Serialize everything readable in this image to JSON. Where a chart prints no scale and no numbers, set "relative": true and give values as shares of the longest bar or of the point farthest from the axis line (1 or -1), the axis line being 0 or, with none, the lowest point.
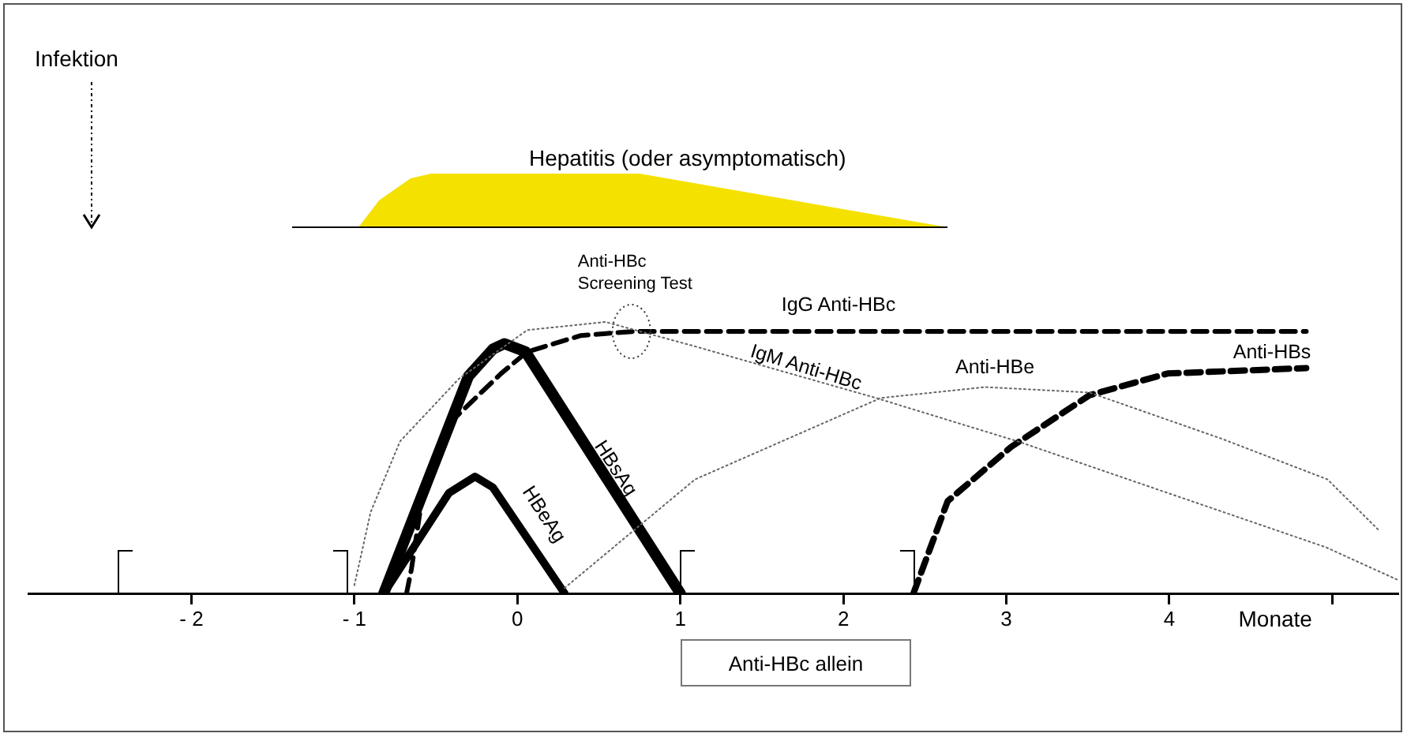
{
  "chart_data": {
    "type": "line",
    "relative": true,
    "xlim": [
      -3,
      5.4
    ],
    "xticks": [
      {
        "value": -2,
        "label": "- 2"
      },
      {
        "value": -1,
        "label": "- 1"
      },
      0,
      1,
      2,
      3,
      4,
      {
        "value": 5,
        "label": null
      }
    ],
    "xlabel": "Monate",
    "grid": false,
    "legend": false,
    "marker": "none",
    "annotations": [
      "Infektion",
      {
        "text": "Anti-HBc\nScreening Test",
        "x": 0.7,
        "y": 0.965
      },
      "Anti-HBc allein",
      "Hepatitis (oder asymptomatisch)"
    ],
    "series": [
      {
        "name": "IgM Anti-HBc",
        "color": "#666666",
        "line_style": "dotted",
        "x": [
          -1.0,
          -0.9,
          -0.72,
          -0.36,
          0.06,
          0.54,
          1.09,
          2.2,
          3.07,
          3.99,
          4.96,
          5.4
        ],
        "values": [
          0.03,
          0.3,
          0.56,
          0.79,
          0.97,
          1.0,
          0.91,
          0.72,
          0.56,
          0.37,
          0.17,
          0.05
        ]
      },
      {
        "name": "Anti-HBe",
        "color": "#666666",
        "line_style": "dotted",
        "x": [
          0.29,
          1.09,
          2.23,
          2.87,
          3.51,
          4.32,
          4.97,
          5.29
        ],
        "values": [
          0.02,
          0.42,
          0.72,
          0.76,
          0.74,
          0.57,
          0.42,
          0.23
        ]
      },
      {
        "name": "IgG Anti-HBc",
        "color": "#000000",
        "line_style": "dashed",
        "x": [
          -0.68,
          -0.65,
          -0.58,
          -0.43,
          -0.1,
          0.06,
          0.39,
          0.71,
          4.84
        ],
        "values": [
          0,
          0.09,
          0.37,
          0.62,
          0.81,
          0.89,
          0.95,
          0.965,
          0.965
        ]
      },
      {
        "name": "Anti-HBs",
        "color": "#000000",
        "line_style": "dashed",
        "x": [
          2.43,
          2.64,
          3.03,
          3.51,
          3.99,
          4.84
        ],
        "values": [
          0,
          0.34,
          0.54,
          0.73,
          0.81,
          0.83
        ]
      },
      {
        "name": "HBeAg",
        "color": "#000000",
        "line_style": "solid",
        "x": [
          -0.82,
          -0.42,
          -0.26,
          -0.15,
          0.29
        ],
        "values": [
          0,
          0.37,
          0.43,
          0.39,
          0
        ]
      },
      {
        "name": "HBsAg",
        "color": "#000000",
        "line_style": "solid",
        "x": [
          -0.82,
          -0.3,
          -0.15,
          -0.08,
          0.05,
          1
        ],
        "values": [
          0,
          0.8,
          0.9,
          0.92,
          0.89,
          0
        ]
      }
    ]
  }
}
